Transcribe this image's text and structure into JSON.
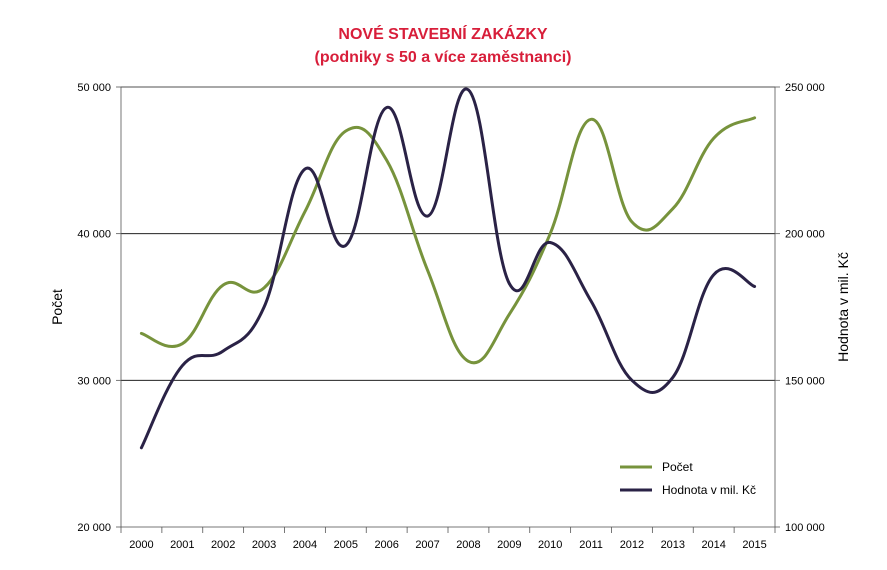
{
  "chart_data": {
    "type": "line",
    "title": "NOVÉ STAVEBNÍ ZAKÁZKY",
    "subtitle": "(podniky s 50 a více zaměstnanci)",
    "title_color": "#d81e3a",
    "x": [
      "2000",
      "2001",
      "2002",
      "2003",
      "2004",
      "2005",
      "2006",
      "2007",
      "2008",
      "2009",
      "2010",
      "2011",
      "2012",
      "2013",
      "2014",
      "2015"
    ],
    "y_left": {
      "label": "Počet",
      "range": [
        20000,
        50000
      ],
      "ticks": [
        20000,
        30000,
        40000,
        50000
      ],
      "tick_labels": [
        "20 000",
        "30 000",
        "40 000",
        "50 000"
      ]
    },
    "y_right": {
      "label": "Hodnota v mil. Kč",
      "range": [
        100000,
        250000
      ],
      "ticks": [
        100000,
        150000,
        200000,
        250000
      ],
      "tick_labels": [
        "100 000",
        "150 000",
        "200 000",
        "250 000"
      ]
    },
    "gridlines": [
      30000,
      40000,
      50000
    ],
    "legend_position": "bottom-right",
    "series": [
      {
        "name": "Počet",
        "axis": "left",
        "color": "#77933c",
        "values": [
          33200,
          32500,
          36500,
          36300,
          41500,
          47000,
          45000,
          37500,
          31300,
          34500,
          40000,
          47800,
          40800,
          41700,
          46500,
          47900
        ]
      },
      {
        "name": "Hodnota v mil. Kč",
        "axis": "right",
        "color": "#2a2246",
        "values": [
          127000,
          155000,
          160000,
          175000,
          222000,
          196000,
          243000,
          206000,
          249000,
          183000,
          197000,
          177000,
          150000,
          151000,
          186000,
          182000
        ]
      }
    ]
  }
}
